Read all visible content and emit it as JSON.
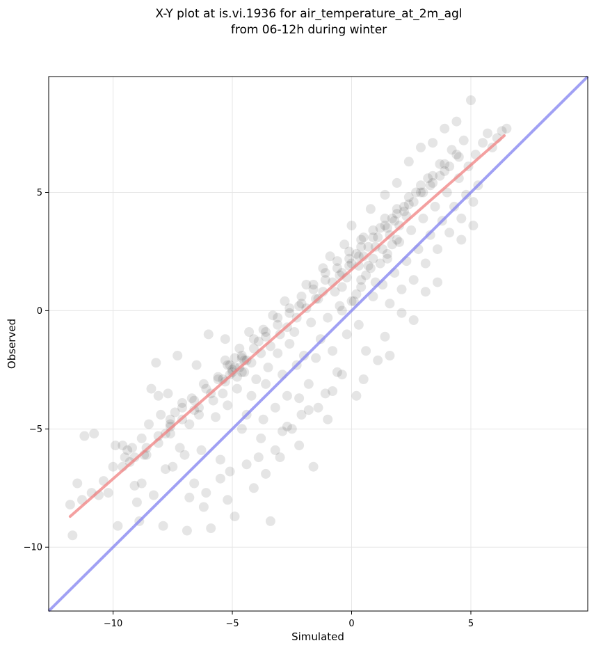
{
  "chart_data": {
    "type": "scatter",
    "title_lines": [
      "X-Y plot at is.vi.1936 for air_temperature_at_2m_agl",
      "from 06-12h during winter"
    ],
    "xlabel": "Simulated",
    "ylabel": "Observed",
    "xlim": [
      -12.7,
      9.9
    ],
    "ylim": [
      -12.7,
      9.9
    ],
    "xticks": [
      -10,
      -5,
      0,
      5
    ],
    "yticks": [
      -10,
      -5,
      0,
      5
    ],
    "xtick_labels": [
      "−10",
      "−5",
      "0",
      "5"
    ],
    "ytick_labels": [
      "−10",
      "−5",
      "0",
      "5"
    ],
    "grid": true,
    "point_color": "#000000",
    "point_opacity": 0.1,
    "regression_line": {
      "color": "#f08080",
      "x": [
        -11.8,
        6.4
      ],
      "y": [
        -8.7,
        7.4
      ]
    },
    "identity_line": {
      "color": "#8080f0",
      "x": [
        -12.7,
        9.9
      ],
      "y": [
        -12.7,
        9.9
      ]
    },
    "points": [
      [
        -11.8,
        -8.2
      ],
      [
        -11.7,
        -9.5
      ],
      [
        -11.5,
        -7.3
      ],
      [
        -11.3,
        -8.0
      ],
      [
        -11.2,
        -5.3
      ],
      [
        -10.8,
        -5.2
      ],
      [
        -10.9,
        -7.7
      ],
      [
        -10.6,
        -7.8
      ],
      [
        -10.4,
        -7.2
      ],
      [
        -10.2,
        -7.7
      ],
      [
        -10.0,
        -6.6
      ],
      [
        -9.9,
        -5.7
      ],
      [
        -9.8,
        -9.1
      ],
      [
        -9.6,
        -5.7
      ],
      [
        -9.5,
        -6.2
      ],
      [
        -9.4,
        -5.9
      ],
      [
        -9.3,
        -6.4
      ],
      [
        -9.2,
        -5.8
      ],
      [
        -9.1,
        -7.4
      ],
      [
        -9.0,
        -8.1
      ],
      [
        -8.9,
        -8.9
      ],
      [
        -8.8,
        -5.4
      ],
      [
        -8.7,
        -6.1
      ],
      [
        -8.5,
        -4.8
      ],
      [
        -8.4,
        -3.3
      ],
      [
        -8.3,
        -7.8
      ],
      [
        -8.2,
        -2.2
      ],
      [
        -8.1,
        -3.6
      ],
      [
        -8.0,
        -4.4
      ],
      [
        -7.9,
        -9.1
      ],
      [
        -7.8,
        -5.2
      ],
      [
        -7.7,
        -3.5
      ],
      [
        -7.6,
        -4.6
      ],
      [
        -7.5,
        -6.6
      ],
      [
        -7.4,
        -4.3
      ],
      [
        -7.3,
        -1.9
      ],
      [
        -7.2,
        -5.8
      ],
      [
        -7.1,
        -3.9
      ],
      [
        -7.0,
        -6.1
      ],
      [
        -6.9,
        -9.3
      ],
      [
        -6.8,
        -4.8
      ],
      [
        -6.7,
        -3.7
      ],
      [
        -6.6,
        -7.3
      ],
      [
        -6.5,
        -2.3
      ],
      [
        -6.4,
        -4.1
      ],
      [
        -6.3,
        -5.9
      ],
      [
        -6.2,
        -3.1
      ],
      [
        -6.1,
        -7.7
      ],
      [
        -6.0,
        -1.0
      ],
      [
        -5.9,
        -9.2
      ],
      [
        -5.8,
        -3.8
      ],
      [
        -5.7,
        -4.5
      ],
      [
        -5.6,
        -2.8
      ],
      [
        -5.5,
        -6.3
      ],
      [
        -5.4,
        -3.5
      ],
      [
        -5.3,
        -1.2
      ],
      [
        -5.2,
        -4.0
      ],
      [
        -5.1,
        -6.8
      ],
      [
        -5.0,
        -2.6
      ],
      [
        -4.9,
        -8.7
      ],
      [
        -4.8,
        -3.3
      ],
      [
        -4.7,
        -1.6
      ],
      [
        -4.6,
        -5.0
      ],
      [
        -4.5,
        -2.1
      ],
      [
        -4.4,
        -4.4
      ],
      [
        -4.3,
        -0.9
      ],
      [
        -4.2,
        -3.6
      ],
      [
        -4.1,
        -7.5
      ],
      [
        -4.0,
        -2.9
      ],
      [
        -3.9,
        -1.3
      ],
      [
        -3.8,
        -5.4
      ],
      [
        -3.7,
        -0.8
      ],
      [
        -3.6,
        -3.1
      ],
      [
        -3.5,
        -2.4
      ],
      [
        -3.4,
        -8.9
      ],
      [
        -3.3,
        -0.2
      ],
      [
        -3.2,
        -4.1
      ],
      [
        -3.1,
        -1.8
      ],
      [
        -3.0,
        -6.2
      ],
      [
        -2.9,
        -2.7
      ],
      [
        -2.8,
        0.4
      ],
      [
        -2.7,
        -3.6
      ],
      [
        -2.6,
        -1.4
      ],
      [
        -2.5,
        -5.0
      ],
      [
        -2.4,
        -0.9
      ],
      [
        -2.3,
        -2.3
      ],
      [
        -2.2,
        0.2
      ],
      [
        -2.1,
        -4.4
      ],
      [
        -2.0,
        -1.9
      ],
      [
        -1.9,
        1.1
      ],
      [
        -1.8,
        -3.1
      ],
      [
        -1.7,
        -0.5
      ],
      [
        -1.6,
        -6.6
      ],
      [
        -1.5,
        -2.0
      ],
      [
        -1.4,
        0.5
      ],
      [
        -1.3,
        -1.2
      ],
      [
        -1.2,
        1.8
      ],
      [
        -1.1,
        -3.5
      ],
      [
        -1.0,
        -0.3
      ],
      [
        -0.9,
        2.3
      ],
      [
        -0.8,
        -1.7
      ],
      [
        -0.7,
        0.8
      ],
      [
        -0.6,
        -2.6
      ],
      [
        -0.5,
        1.5
      ],
      [
        -0.4,
        0.0
      ],
      [
        -0.3,
        2.8
      ],
      [
        -0.2,
        -1.0
      ],
      [
        -0.1,
        1.9
      ],
      [
        0.0,
        3.6
      ],
      [
        0.1,
        0.4
      ],
      [
        0.2,
        2.4
      ],
      [
        0.3,
        -0.6
      ],
      [
        0.4,
        1.3
      ],
      [
        0.5,
        3.1
      ],
      [
        0.6,
        -1.7
      ],
      [
        0.7,
        1.9
      ],
      [
        0.8,
        4.3
      ],
      [
        0.9,
        0.6
      ],
      [
        1.0,
        2.7
      ],
      [
        1.1,
        -2.1
      ],
      [
        1.2,
        3.5
      ],
      [
        1.3,
        1.1
      ],
      [
        1.4,
        4.9
      ],
      [
        1.5,
        2.2
      ],
      [
        1.6,
        0.3
      ],
      [
        1.7,
        3.9
      ],
      [
        1.8,
        1.6
      ],
      [
        1.9,
        5.4
      ],
      [
        2.0,
        2.9
      ],
      [
        2.1,
        0.9
      ],
      [
        2.2,
        4.4
      ],
      [
        2.3,
        2.1
      ],
      [
        2.4,
        6.3
      ],
      [
        2.5,
        3.4
      ],
      [
        2.6,
        1.3
      ],
      [
        2.7,
        5.0
      ],
      [
        2.8,
        2.6
      ],
      [
        2.9,
        6.9
      ],
      [
        3.0,
        3.9
      ],
      [
        3.1,
        2.0
      ],
      [
        3.2,
        5.6
      ],
      [
        3.3,
        3.2
      ],
      [
        3.4,
        7.1
      ],
      [
        3.5,
        4.4
      ],
      [
        3.6,
        2.6
      ],
      [
        3.7,
        6.2
      ],
      [
        3.8,
        3.8
      ],
      [
        3.9,
        7.7
      ],
      [
        4.0,
        5.0
      ],
      [
        4.1,
        3.3
      ],
      [
        4.2,
        6.8
      ],
      [
        4.3,
        4.4
      ],
      [
        4.4,
        8.0
      ],
      [
        4.5,
        5.6
      ],
      [
        4.6,
        3.9
      ],
      [
        4.7,
        7.2
      ],
      [
        4.8,
        4.9
      ],
      [
        4.9,
        6.1
      ],
      [
        5.0,
        8.9
      ],
      [
        5.1,
        4.6
      ],
      [
        5.2,
        6.6
      ],
      [
        5.3,
        5.3
      ],
      [
        5.5,
        7.1
      ],
      [
        5.7,
        7.5
      ],
      [
        5.9,
        6.9
      ],
      [
        6.1,
        7.3
      ],
      [
        6.3,
        7.6
      ],
      [
        6.5,
        7.7
      ],
      [
        -6.4,
        -4.4
      ],
      [
        -5.9,
        -3.5
      ],
      [
        -5.3,
        -3.0
      ],
      [
        -4.9,
        -2.4
      ],
      [
        -4.6,
        -2.0
      ],
      [
        -4.1,
        -1.6
      ],
      [
        -3.6,
        -1.1
      ],
      [
        -3.1,
        -0.6
      ],
      [
        -2.6,
        -0.1
      ],
      [
        -2.1,
        0.3
      ],
      [
        -1.6,
        0.9
      ],
      [
        -1.1,
        1.3
      ],
      [
        -0.6,
        1.8
      ],
      [
        -0.1,
        2.2
      ],
      [
        0.4,
        2.7
      ],
      [
        0.9,
        3.1
      ],
      [
        1.4,
        3.6
      ],
      [
        1.9,
        4.1
      ],
      [
        2.4,
        4.5
      ],
      [
        2.9,
        5.0
      ],
      [
        3.4,
        5.4
      ],
      [
        3.9,
        5.9
      ],
      [
        -7.6,
        -4.9
      ],
      [
        -7.1,
        -4.1
      ],
      [
        -6.6,
        -3.8
      ],
      [
        -6.1,
        -3.3
      ],
      [
        -5.6,
        -2.9
      ],
      [
        -5.1,
        -2.3
      ],
      [
        -4.6,
        -1.9
      ],
      [
        -4.1,
        -1.2
      ],
      [
        -3.6,
        -0.9
      ],
      [
        -3.1,
        -0.3
      ],
      [
        -2.6,
        0.1
      ],
      [
        -2.1,
        0.6
      ],
      [
        -1.6,
        1.1
      ],
      [
        -1.1,
        1.6
      ],
      [
        -0.6,
        2.1
      ],
      [
        -0.1,
        2.5
      ],
      [
        0.4,
        3.0
      ],
      [
        0.9,
        3.4
      ],
      [
        1.4,
        3.9
      ],
      [
        1.9,
        4.3
      ],
      [
        2.4,
        4.8
      ],
      [
        2.9,
        5.3
      ],
      [
        3.4,
        5.7
      ],
      [
        3.9,
        6.2
      ],
      [
        4.4,
        6.6
      ],
      [
        -8.6,
        -6.1
      ],
      [
        -8.1,
        -5.6
      ],
      [
        -7.6,
        -5.2
      ],
      [
        -7.1,
        -4.6
      ],
      [
        -6.6,
        -4.2
      ],
      [
        -9.6,
        -6.6
      ],
      [
        -9.1,
        -6.2
      ],
      [
        -8.6,
        -5.8
      ],
      [
        -8.1,
        -5.3
      ],
      [
        -7.6,
        -4.8
      ],
      [
        -4.5,
        -2.6
      ],
      [
        -4.2,
        -2.2
      ],
      [
        -3.8,
        -1.8
      ],
      [
        -3.4,
        -1.5
      ],
      [
        -3.0,
        -1.0
      ],
      [
        -2.7,
        -0.7
      ],
      [
        -2.3,
        -0.3
      ],
      [
        -1.9,
        0.1
      ],
      [
        -1.5,
        0.5
      ],
      [
        -1.2,
        0.8
      ],
      [
        -0.8,
        1.2
      ],
      [
        -0.4,
        1.6
      ],
      [
        0.0,
        2.0
      ],
      [
        0.3,
        2.3
      ],
      [
        0.7,
        2.7
      ],
      [
        1.1,
        3.1
      ],
      [
        1.5,
        3.5
      ],
      [
        1.8,
        3.8
      ],
      [
        2.2,
        4.2
      ],
      [
        2.6,
        4.6
      ],
      [
        3.0,
        5.0
      ],
      [
        3.3,
        5.3
      ],
      [
        3.7,
        5.7
      ],
      [
        4.1,
        6.1
      ],
      [
        4.5,
        6.5
      ],
      [
        0.8,
        1.8
      ],
      [
        1.2,
        2.0
      ],
      [
        0.6,
        1.5
      ],
      [
        1.5,
        2.4
      ],
      [
        1.0,
        1.2
      ],
      [
        0.4,
        1.0
      ],
      [
        1.7,
        2.8
      ],
      [
        0.2,
        0.7
      ],
      [
        1.9,
        3.0
      ],
      [
        0.0,
        0.4
      ],
      [
        -0.5,
        0.2
      ],
      [
        -0.2,
        1.4
      ],
      [
        0.3,
        1.9
      ],
      [
        0.9,
        2.2
      ],
      [
        1.3,
        2.6
      ],
      [
        1.6,
        3.2
      ],
      [
        2.0,
        3.6
      ],
      [
        2.3,
        4.0
      ],
      [
        -0.4,
        1.0
      ],
      [
        0.5,
        2.3
      ],
      [
        -5.0,
        -2.5
      ],
      [
        -4.8,
        -2.8
      ],
      [
        -5.2,
        -2.3
      ],
      [
        -4.9,
        -2.0
      ],
      [
        -5.4,
        -2.9
      ],
      [
        -4.7,
        -2.4
      ],
      [
        -5.1,
        -2.7
      ],
      [
        -4.6,
        -2.6
      ],
      [
        -5.3,
        -2.1
      ],
      [
        -4.4,
        -2.1
      ],
      [
        -3.7,
        -4.6
      ],
      [
        -2.7,
        -4.9
      ],
      [
        -1.8,
        -4.2
      ],
      [
        -0.8,
        -3.4
      ],
      [
        0.5,
        -2.9
      ],
      [
        1.4,
        -1.1
      ],
      [
        -2.2,
        -3.7
      ],
      [
        -3.2,
        -5.9
      ],
      [
        -4.4,
        -6.5
      ],
      [
        -5.5,
        -7.1
      ],
      [
        -6.8,
        -7.9
      ],
      [
        -7.8,
        -6.7
      ],
      [
        -8.8,
        -7.3
      ],
      [
        -6.2,
        -8.3
      ],
      [
        -5.2,
        -8.0
      ],
      [
        -3.6,
        -6.9
      ],
      [
        -2.2,
        -5.7
      ],
      [
        -1.0,
        -4.6
      ],
      [
        0.2,
        -3.6
      ],
      [
        1.6,
        -1.9
      ],
      [
        2.6,
        -0.4
      ],
      [
        3.6,
        1.2
      ],
      [
        4.6,
        3.0
      ],
      [
        5.1,
        3.6
      ],
      [
        3.1,
        0.8
      ],
      [
        2.1,
        -0.1
      ],
      [
        -0.4,
        -2.7
      ],
      [
        -1.4,
        -4.1
      ],
      [
        -2.9,
        -5.1
      ],
      [
        -3.9,
        -6.2
      ]
    ]
  }
}
